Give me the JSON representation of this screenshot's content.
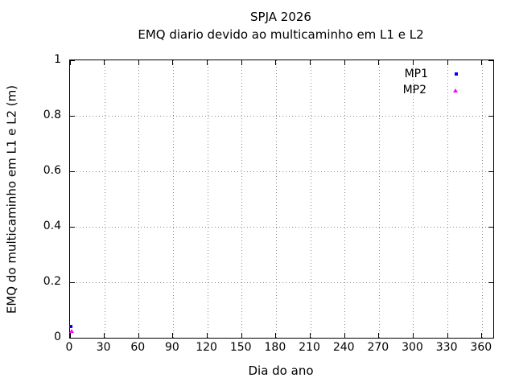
{
  "chart_data": {
    "type": "scatter",
    "title": "SPJA 2026",
    "subtitle": "EMQ diario devido ao multicaminho em L1 e L2",
    "xlabel": "Dia do ano",
    "ylabel": "EMQ do multicaminho em L1 e L2 (m)",
    "xlim": [
      0,
      370
    ],
    "ylim": [
      0,
      1
    ],
    "xticks": [
      0,
      30,
      60,
      90,
      120,
      150,
      180,
      210,
      240,
      270,
      300,
      330,
      360
    ],
    "yticks": [
      0,
      0.2,
      0.4,
      0.6,
      0.8,
      1
    ],
    "yticklabels": [
      "0",
      "0.2",
      "0.4",
      "0.6",
      "0.8",
      "1"
    ],
    "grid": "dotted",
    "legend_position": "inside-top-right",
    "colors": {
      "grid": "#8a8a8a",
      "border": "#000000"
    },
    "series": [
      {
        "name": "MP1",
        "color": "#0000ff",
        "marker": "square",
        "points": [
          {
            "x": 1,
            "y": 0.04
          }
        ]
      },
      {
        "name": "MP2",
        "color": "#ff00ff",
        "marker": "triangle",
        "points": [
          {
            "x": 1,
            "y": 0.027
          }
        ]
      }
    ]
  }
}
